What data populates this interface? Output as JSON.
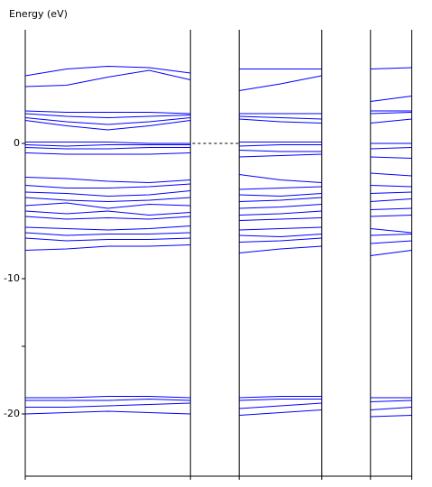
{
  "chart_data": {
    "type": "line",
    "y_label": "Energy (eV)",
    "color": "#0000ff",
    "ylim": [
      -24.6,
      8.4
    ],
    "yticks": [
      -20,
      -10,
      0
    ],
    "minor_yticks": [
      -15
    ],
    "fermi_level": 0,
    "panels": [
      {
        "x": [
          0,
          1,
          2,
          3,
          4
        ],
        "series": [
          {
            "values": [
              5.0,
              5.5,
              5.7,
              5.6,
              5.2
            ]
          },
          {
            "values": [
              4.2,
              4.3,
              4.9,
              5.4,
              4.7
            ]
          },
          {
            "values": [
              2.4,
              2.3,
              2.3,
              2.3,
              2.2
            ]
          },
          {
            "values": [
              2.2,
              2.0,
              1.9,
              2.0,
              2.1
            ]
          },
          {
            "values": [
              1.9,
              1.6,
              1.4,
              1.6,
              1.9
            ]
          },
          {
            "values": [
              1.7,
              1.3,
              1.0,
              1.3,
              1.7
            ]
          },
          {
            "values": [
              0.1,
              0.1,
              0.1,
              0.0,
              0.0
            ]
          },
          {
            "values": [
              -0.1,
              -0.2,
              -0.1,
              -0.1,
              -0.1
            ]
          },
          {
            "values": [
              -0.3,
              -0.4,
              -0.4,
              -0.3,
              -0.3
            ]
          },
          {
            "values": [
              -0.7,
              -0.8,
              -0.8,
              -0.8,
              -0.7
            ]
          },
          {
            "values": [
              -2.5,
              -2.6,
              -2.8,
              -2.9,
              -2.7
            ]
          },
          {
            "values": [
              -3.1,
              -3.3,
              -3.3,
              -3.2,
              -3.0
            ]
          },
          {
            "values": [
              -3.6,
              -3.7,
              -3.9,
              -3.8,
              -3.5
            ]
          },
          {
            "values": [
              -4.0,
              -4.2,
              -4.3,
              -4.2,
              -4.0
            ]
          },
          {
            "values": [
              -4.6,
              -4.4,
              -4.8,
              -4.5,
              -4.6
            ]
          },
          {
            "values": [
              -5.0,
              -5.2,
              -5.0,
              -5.3,
              -5.1
            ]
          },
          {
            "values": [
              -5.4,
              -5.6,
              -5.5,
              -5.6,
              -5.4
            ]
          },
          {
            "values": [
              -6.2,
              -6.3,
              -6.4,
              -6.3,
              -6.1
            ]
          },
          {
            "values": [
              -6.6,
              -6.8,
              -6.7,
              -6.7,
              -6.6
            ]
          },
          {
            "values": [
              -7.0,
              -7.2,
              -7.1,
              -7.1,
              -7.0
            ]
          },
          {
            "values": [
              -7.9,
              -7.8,
              -7.6,
              -7.6,
              -7.5
            ]
          },
          {
            "values": [
              -18.8,
              -18.8,
              -18.7,
              -18.7,
              -18.8
            ]
          },
          {
            "values": [
              -19.0,
              -19.0,
              -19.0,
              -18.9,
              -19.0
            ]
          },
          {
            "values": [
              -19.5,
              -19.5,
              -19.4,
              -19.3,
              -19.2
            ]
          },
          {
            "values": [
              -20.0,
              -19.9,
              -19.8,
              -19.9,
              -20.0
            ]
          }
        ]
      },
      {
        "x": [
          0,
          1,
          2
        ],
        "series": [
          {
            "values": [
              5.5,
              5.5,
              5.5
            ]
          },
          {
            "values": [
              3.9,
              4.4,
              5.0
            ]
          },
          {
            "values": [
              2.2,
              2.2,
              2.2
            ]
          },
          {
            "values": [
              2.0,
              1.9,
              1.8
            ]
          },
          {
            "values": [
              1.8,
              1.6,
              1.5
            ]
          },
          {
            "values": [
              0.1,
              0.1,
              0.1
            ]
          },
          {
            "values": [
              -0.2,
              -0.1,
              -0.1
            ]
          },
          {
            "values": [
              -0.5,
              -0.6,
              -0.6
            ]
          },
          {
            "values": [
              -1.0,
              -0.9,
              -0.8
            ]
          },
          {
            "values": [
              -2.3,
              -2.7,
              -2.9
            ]
          },
          {
            "values": [
              -3.4,
              -3.3,
              -3.2
            ]
          },
          {
            "values": [
              -3.8,
              -3.9,
              -3.7
            ]
          },
          {
            "values": [
              -4.3,
              -4.2,
              -4.0
            ]
          },
          {
            "values": [
              -4.8,
              -4.7,
              -4.5
            ]
          },
          {
            "values": [
              -5.3,
              -5.2,
              -5.0
            ]
          },
          {
            "values": [
              -5.7,
              -5.6,
              -5.5
            ]
          },
          {
            "values": [
              -6.4,
              -6.3,
              -6.2
            ]
          },
          {
            "values": [
              -6.8,
              -6.9,
              -6.7
            ]
          },
          {
            "values": [
              -7.3,
              -7.2,
              -7.0
            ]
          },
          {
            "values": [
              -8.1,
              -7.8,
              -7.6
            ]
          },
          {
            "values": [
              -18.8,
              -18.7,
              -18.7
            ]
          },
          {
            "values": [
              -19.0,
              -18.9,
              -18.9
            ]
          },
          {
            "values": [
              -19.6,
              -19.4,
              -19.2
            ]
          },
          {
            "values": [
              -20.1,
              -19.9,
              -19.7
            ]
          }
        ]
      },
      {
        "x": [
          0,
          1
        ],
        "series": [
          {
            "values": [
              5.5,
              5.6
            ]
          },
          {
            "values": [
              3.1,
              3.5
            ]
          },
          {
            "values": [
              2.4,
              2.4
            ]
          },
          {
            "values": [
              2.2,
              2.3
            ]
          },
          {
            "values": [
              1.5,
              1.8
            ]
          },
          {
            "values": [
              0.0,
              0.0
            ]
          },
          {
            "values": [
              -0.4,
              -0.3
            ]
          },
          {
            "values": [
              -1.0,
              -1.1
            ]
          },
          {
            "values": [
              -2.2,
              -2.4
            ]
          },
          {
            "values": [
              -3.1,
              -3.2
            ]
          },
          {
            "values": [
              -3.7,
              -3.6
            ]
          },
          {
            "values": [
              -4.3,
              -4.1
            ]
          },
          {
            "values": [
              -4.9,
              -4.8
            ]
          },
          {
            "values": [
              -5.4,
              -5.3
            ]
          },
          {
            "values": [
              -6.3,
              -6.6
            ]
          },
          {
            "values": [
              -6.8,
              -6.7
            ]
          },
          {
            "values": [
              -7.4,
              -7.2
            ]
          },
          {
            "values": [
              -8.3,
              -7.9
            ]
          },
          {
            "values": [
              -18.8,
              -18.8
            ]
          },
          {
            "values": [
              -19.1,
              -19.0
            ]
          },
          {
            "values": [
              -19.7,
              -19.5
            ]
          },
          {
            "values": [
              -20.2,
              -20.1
            ]
          }
        ]
      }
    ]
  }
}
